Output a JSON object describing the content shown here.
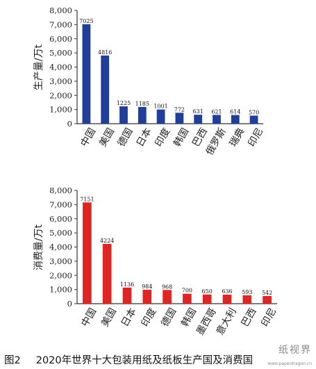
{
  "caption": {
    "label": "图2",
    "text": "2020年世界十大包装用纸及纸板生产国及消费国"
  },
  "watermark": {
    "chars": "纸视界",
    "url": "www.paperdragon.cn"
  },
  "colors": {
    "production_bar": "#1f3f9a",
    "consumption_bar": "#e02421",
    "axis": "#333333"
  },
  "chart_data": [
    {
      "type": "bar",
      "title": "",
      "xlabel": "",
      "ylabel": "生产量/万t",
      "ylim": [
        0,
        8000
      ],
      "yticks": [
        "0",
        "1,000",
        "2,000",
        "3,000",
        "4,000",
        "5,000",
        "6,000",
        "7,000",
        "8,000"
      ],
      "categories": [
        "中国",
        "美国",
        "德国",
        "日本",
        "印度",
        "韩国",
        "巴西",
        "俄罗斯",
        "瑞典",
        "印尼"
      ],
      "values": [
        7025,
        4816,
        1225,
        1185,
        1001,
        772,
        631,
        621,
        614,
        570
      ],
      "value_labels": [
        "7025",
        "4816",
        "1225",
        "1185",
        "1001",
        "772",
        "631",
        "621",
        "614",
        "570"
      ],
      "color": "#1f3f9a"
    },
    {
      "type": "bar",
      "title": "",
      "xlabel": "",
      "ylabel": "消费量/万t",
      "ylim": [
        0,
        8000
      ],
      "yticks": [
        "0",
        "1,000",
        "2,000",
        "3,000",
        "4,000",
        "5,000",
        "6,000",
        "7,000",
        "8,000"
      ],
      "categories": [
        "中国",
        "美国",
        "日本",
        "印度",
        "德国",
        "韩国",
        "墨西哥",
        "意大利",
        "巴西",
        "印尼"
      ],
      "values": [
        7151,
        4224,
        1136,
        984,
        968,
        700,
        650,
        636,
        593,
        542
      ],
      "value_labels": [
        "7151",
        "4224",
        "1136",
        "984",
        "968",
        "700",
        "650",
        "636",
        "593",
        "542"
      ],
      "color": "#e02421"
    }
  ]
}
